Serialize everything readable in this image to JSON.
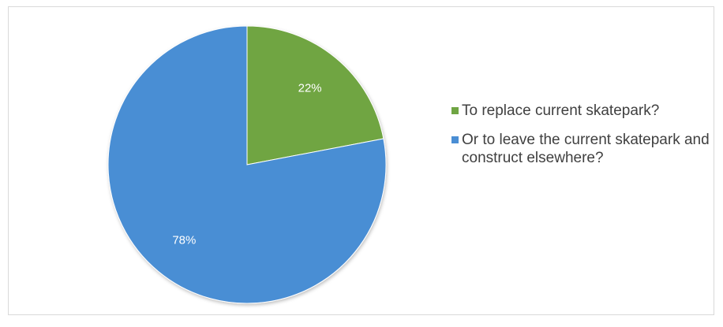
{
  "chart_data": {
    "type": "pie",
    "title": "",
    "slices": [
      {
        "label": "To replace current skatepark?",
        "value": 22,
        "display": "22%",
        "color": "#6fa543"
      },
      {
        "label": "Or to leave the current skatepark and construct elsewhere?",
        "value": 78,
        "display": "78%",
        "color": "#4a8ed4"
      }
    ],
    "legend_position": "right"
  }
}
